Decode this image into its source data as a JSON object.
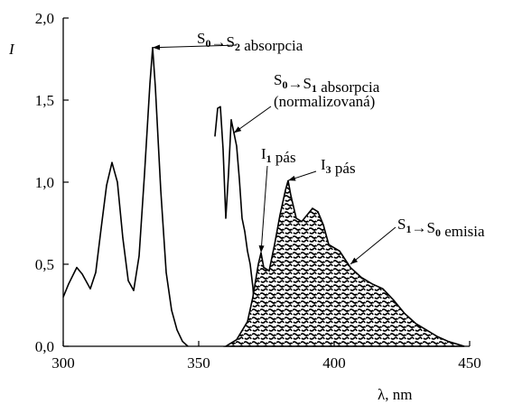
{
  "chart_data": {
    "type": "line",
    "title": "",
    "xlabel": "λ, nm",
    "ylabel": "I",
    "xlim": [
      300,
      450
    ],
    "ylim": [
      0,
      2.0
    ],
    "x_ticks": [
      "300",
      "350",
      "400",
      "450"
    ],
    "y_ticks": [
      "0,0",
      "0,5",
      "1,0",
      "1,5",
      "2,0"
    ],
    "x_tick_values": [
      300,
      350,
      400,
      450
    ],
    "y_tick_values": [
      0,
      0.5,
      1.0,
      1.5,
      2.0
    ],
    "grid": false,
    "series": [
      {
        "key": "abs_s0s2",
        "x": [
          300,
          302,
          305,
          307,
          310,
          312,
          314,
          316,
          318,
          320,
          322,
          324,
          326,
          328,
          330,
          332,
          333,
          334,
          336,
          338,
          340,
          342,
          344,
          346
        ],
        "y": [
          0.3,
          0.38,
          0.48,
          0.44,
          0.35,
          0.45,
          0.72,
          0.98,
          1.12,
          1.0,
          0.66,
          0.4,
          0.34,
          0.55,
          1.05,
          1.6,
          1.82,
          1.58,
          0.95,
          0.45,
          0.22,
          0.1,
          0.03,
          0.0
        ],
        "fill": false
      },
      {
        "key": "abs_s0s1",
        "x": [
          356,
          357,
          358,
          359,
          360,
          361,
          362,
          363,
          364,
          365,
          366,
          367,
          368,
          369,
          370,
          371,
          372
        ],
        "y": [
          1.28,
          1.45,
          1.46,
          1.2,
          0.78,
          1.05,
          1.38,
          1.3,
          1.22,
          1.02,
          0.78,
          0.7,
          0.58,
          0.5,
          0.36,
          0.12,
          0.0
        ],
        "fill": false
      },
      {
        "key": "emission",
        "x": [
          360,
          364,
          368,
          370,
          372,
          373,
          374,
          376,
          378,
          380,
          382,
          383,
          384,
          386,
          388,
          390,
          392,
          394,
          396,
          398,
          400,
          402,
          406,
          410,
          414,
          418,
          422,
          426,
          430,
          434,
          438,
          442,
          446,
          448
        ],
        "y": [
          0.0,
          0.04,
          0.15,
          0.3,
          0.5,
          0.57,
          0.48,
          0.46,
          0.62,
          0.8,
          0.95,
          1.01,
          0.92,
          0.78,
          0.76,
          0.8,
          0.84,
          0.82,
          0.74,
          0.62,
          0.6,
          0.58,
          0.48,
          0.42,
          0.38,
          0.35,
          0.28,
          0.2,
          0.14,
          0.1,
          0.06,
          0.03,
          0.01,
          0.0
        ],
        "fill": true
      }
    ],
    "annotations": [
      {
        "key": "a1",
        "main": "S",
        "sub1": "0",
        "arrow": "→S",
        "sub2": "2",
        "tail": " absorpcia",
        "line2": "",
        "ax": 333,
        "ay": 1.82
      },
      {
        "key": "a2",
        "main": "S",
        "sub1": "0",
        "arrow": "→S",
        "sub2": "1",
        "tail": " absorpcia",
        "line2": "(normalizovaná)",
        "ax": 363,
        "ay": 1.3
      },
      {
        "key": "a3",
        "main": "I",
        "sub1": "1",
        "arrow": "",
        "sub2": "",
        "tail": " pás",
        "line2": "",
        "ax": 373,
        "ay": 0.57
      },
      {
        "key": "a4",
        "main": "I",
        "sub1": "3",
        "arrow": "",
        "sub2": "",
        "tail": " pás",
        "line2": "",
        "ax": 383,
        "ay": 1.01
      },
      {
        "key": "a5",
        "main": "S",
        "sub1": "1",
        "arrow": "→S",
        "sub2": "0",
        "tail": " emisia",
        "line2": "",
        "ax": 406,
        "ay": 0.5
      }
    ]
  }
}
